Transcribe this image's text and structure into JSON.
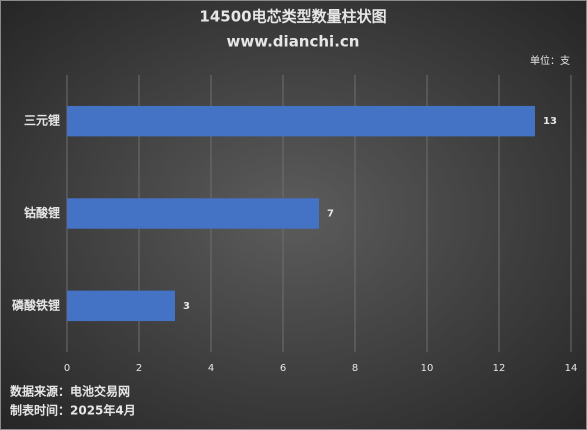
{
  "chart_data": {
    "type": "bar",
    "orientation": "horizontal",
    "title": "14500电芯类型数量柱状图",
    "subtitle": "www.dianchi.cn",
    "unit_label": "单位：支",
    "categories": [
      "三元锂",
      "钴酸锂",
      "磷酸铁锂"
    ],
    "values": [
      13,
      7,
      3
    ],
    "color": "#4472c4",
    "xlim": [
      0,
      14
    ],
    "xticks": [
      0,
      2,
      4,
      6,
      8,
      10,
      12,
      14
    ],
    "grid": true,
    "notes": [
      "数据来源：电池交易网",
      "制表时间：2025年4月"
    ]
  }
}
